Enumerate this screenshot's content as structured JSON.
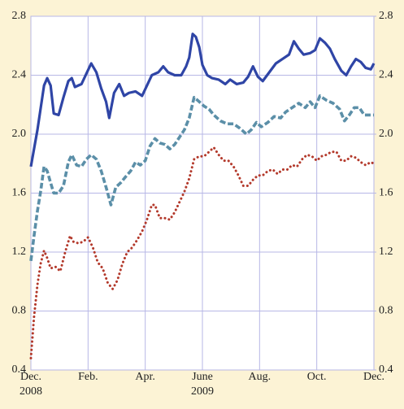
{
  "chart_data": {
    "type": "line",
    "xlim": [
      0,
      12
    ],
    "xticks": [
      {
        "value": 0,
        "label": "Dec."
      },
      {
        "value": 2,
        "label": "Feb."
      },
      {
        "value": 4,
        "label": "Apr."
      },
      {
        "value": 6,
        "label": "June"
      },
      {
        "value": 8,
        "label": "Aug."
      },
      {
        "value": 10,
        "label": "Oct."
      },
      {
        "value": 12,
        "label": "Dec."
      }
    ],
    "x_year_labels": [
      {
        "value": 0,
        "label": "2008"
      },
      {
        "value": 6,
        "label": "2009"
      }
    ],
    "ylim": [
      0.4,
      2.8
    ],
    "yticks": [
      {
        "value": 0.4,
        "label": "0.4"
      },
      {
        "value": 0.8,
        "label": "0.8"
      },
      {
        "value": 1.2,
        "label": "1.2"
      },
      {
        "value": 1.6,
        "label": "1.6"
      },
      {
        "value": 2.0,
        "label": "2.0"
      },
      {
        "value": 2.4,
        "label": "2.4"
      },
      {
        "value": 2.8,
        "label": "2.8"
      }
    ],
    "y2lim": [
      0.4,
      2.8
    ],
    "y2ticks": [
      {
        "value": 0.4,
        "label": "0.4"
      },
      {
        "value": 0.8,
        "label": "0.8"
      },
      {
        "value": 1.2,
        "label": "1.2"
      },
      {
        "value": 1.6,
        "label": "1.6"
      },
      {
        "value": 2.0,
        "label": "2.0"
      },
      {
        "value": 2.4,
        "label": "2.4"
      },
      {
        "value": 2.8,
        "label": "2.8"
      }
    ],
    "grid": true,
    "series": [
      {
        "color": "#2f45a6",
        "style": "solid",
        "x": [
          0,
          0.23,
          0.46,
          0.57,
          0.69,
          0.8,
          0.97,
          1.14,
          1.31,
          1.43,
          1.54,
          1.77,
          1.94,
          2.11,
          2.29,
          2.46,
          2.63,
          2.74,
          2.91,
          3.09,
          3.26,
          3.43,
          3.66,
          3.89,
          4.06,
          4.23,
          4.46,
          4.63,
          4.8,
          5.03,
          5.26,
          5.43,
          5.54,
          5.66,
          5.77,
          5.89,
          6.0,
          6.17,
          6.34,
          6.57,
          6.8,
          6.97,
          7.2,
          7.43,
          7.6,
          7.77,
          7.94,
          8.11,
          8.34,
          8.57,
          8.8,
          9.03,
          9.2,
          9.37,
          9.54,
          9.77,
          9.94,
          10.11,
          10.29,
          10.46,
          10.63,
          10.86,
          11.03,
          11.2,
          11.37,
          11.54,
          11.71,
          11.89,
          12.0
        ],
        "values": [
          1.78,
          2.03,
          2.33,
          2.38,
          2.33,
          2.14,
          2.13,
          2.25,
          2.36,
          2.38,
          2.32,
          2.34,
          2.41,
          2.48,
          2.42,
          2.31,
          2.22,
          2.11,
          2.28,
          2.34,
          2.26,
          2.28,
          2.29,
          2.26,
          2.33,
          2.4,
          2.42,
          2.46,
          2.42,
          2.4,
          2.4,
          2.46,
          2.52,
          2.68,
          2.66,
          2.59,
          2.47,
          2.4,
          2.38,
          2.37,
          2.34,
          2.37,
          2.34,
          2.35,
          2.39,
          2.46,
          2.39,
          2.36,
          2.42,
          2.48,
          2.51,
          2.54,
          2.63,
          2.58,
          2.54,
          2.55,
          2.57,
          2.65,
          2.62,
          2.58,
          2.51,
          2.43,
          2.4,
          2.46,
          2.51,
          2.49,
          2.45,
          2.44,
          2.48
        ]
      },
      {
        "color": "#5b8fa8",
        "style": "dashed",
        "x": [
          0,
          0.11,
          0.23,
          0.34,
          0.46,
          0.57,
          0.69,
          0.8,
          0.97,
          1.14,
          1.31,
          1.43,
          1.6,
          1.77,
          1.94,
          2.11,
          2.29,
          2.46,
          2.63,
          2.8,
          2.97,
          3.14,
          3.31,
          3.49,
          3.66,
          3.83,
          4.0,
          4.17,
          4.34,
          4.51,
          4.69,
          4.86,
          5.03,
          5.2,
          5.37,
          5.54,
          5.71,
          5.89,
          6.06,
          6.23,
          6.4,
          6.63,
          6.86,
          7.09,
          7.31,
          7.54,
          7.71,
          7.89,
          8.06,
          8.29,
          8.51,
          8.74,
          8.91,
          9.14,
          9.37,
          9.6,
          9.77,
          9.94,
          10.11,
          10.34,
          10.57,
          10.8,
          10.97,
          11.14,
          11.31,
          11.49,
          11.66,
          11.83,
          12.0
        ],
        "values": [
          1.14,
          1.31,
          1.48,
          1.61,
          1.78,
          1.75,
          1.67,
          1.6,
          1.6,
          1.65,
          1.81,
          1.86,
          1.79,
          1.78,
          1.83,
          1.86,
          1.83,
          1.75,
          1.64,
          1.52,
          1.64,
          1.67,
          1.71,
          1.75,
          1.81,
          1.79,
          1.82,
          1.92,
          1.97,
          1.94,
          1.93,
          1.9,
          1.93,
          1.98,
          2.03,
          2.11,
          2.25,
          2.22,
          2.19,
          2.17,
          2.13,
          2.09,
          2.07,
          2.07,
          2.04,
          2.0,
          2.03,
          2.08,
          2.05,
          2.08,
          2.12,
          2.11,
          2.15,
          2.18,
          2.21,
          2.18,
          2.22,
          2.18,
          2.26,
          2.23,
          2.21,
          2.17,
          2.09,
          2.13,
          2.18,
          2.18,
          2.13,
          2.13,
          2.13
        ]
      },
      {
        "color": "#b3392b",
        "style": "dotted",
        "x": [
          0,
          0.11,
          0.23,
          0.34,
          0.46,
          0.57,
          0.69,
          0.86,
          1.03,
          1.2,
          1.37,
          1.49,
          1.66,
          1.83,
          2.0,
          2.17,
          2.34,
          2.51,
          2.69,
          2.86,
          3.03,
          3.2,
          3.37,
          3.54,
          3.71,
          3.89,
          4.06,
          4.23,
          4.34,
          4.51,
          4.69,
          4.86,
          5.03,
          5.2,
          5.37,
          5.54,
          5.71,
          5.89,
          6.06,
          6.23,
          6.4,
          6.57,
          6.74,
          6.91,
          7.09,
          7.26,
          7.43,
          7.6,
          7.77,
          7.94,
          8.11,
          8.29,
          8.46,
          8.63,
          8.8,
          8.97,
          9.14,
          9.31,
          9.49,
          9.66,
          9.83,
          10.0,
          10.17,
          10.34,
          10.51,
          10.69,
          10.86,
          11.03,
          11.2,
          11.37,
          11.54,
          11.71,
          11.89,
          12.0
        ],
        "values": [
          0.48,
          0.76,
          0.98,
          1.12,
          1.21,
          1.16,
          1.09,
          1.1,
          1.07,
          1.2,
          1.31,
          1.27,
          1.26,
          1.27,
          1.3,
          1.23,
          1.13,
          1.09,
          0.99,
          0.95,
          1.01,
          1.12,
          1.2,
          1.23,
          1.28,
          1.34,
          1.42,
          1.52,
          1.52,
          1.43,
          1.43,
          1.42,
          1.47,
          1.54,
          1.61,
          1.7,
          1.83,
          1.85,
          1.85,
          1.88,
          1.91,
          1.86,
          1.82,
          1.82,
          1.78,
          1.72,
          1.65,
          1.65,
          1.69,
          1.72,
          1.72,
          1.75,
          1.76,
          1.73,
          1.76,
          1.76,
          1.79,
          1.78,
          1.83,
          1.86,
          1.85,
          1.82,
          1.85,
          1.86,
          1.88,
          1.88,
          1.82,
          1.82,
          1.85,
          1.84,
          1.81,
          1.79,
          1.81,
          1.8
        ]
      }
    ]
  }
}
